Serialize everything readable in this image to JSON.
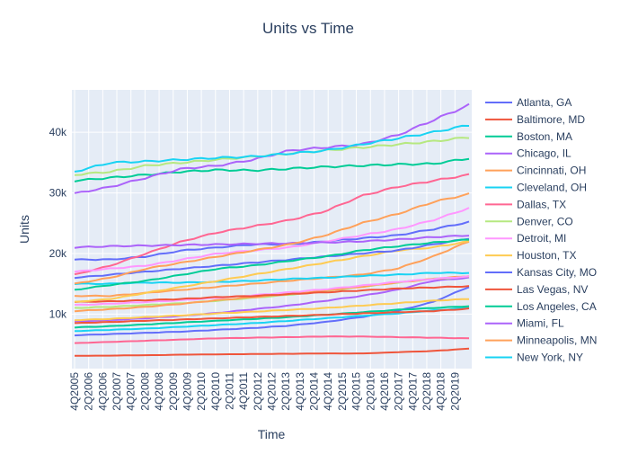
{
  "chart_data": {
    "type": "line",
    "title": "Units vs Time",
    "xlabel": "Time",
    "ylabel": "Units",
    "ylim": [
      1000,
      47000
    ],
    "y_ticks": [
      10000,
      20000,
      30000,
      40000
    ],
    "y_tick_labels": [
      "10k",
      "20k",
      "30k",
      "40k"
    ],
    "x_tick_labels": [
      "4Q2005",
      "2Q2006",
      "4Q2006",
      "2Q2007",
      "4Q2007",
      "2Q2008",
      "4Q2008",
      "2Q2009",
      "4Q2009",
      "2Q2010",
      "4Q2010",
      "2Q2011",
      "4Q2011",
      "2Q2012",
      "4Q2012",
      "2Q2013",
      "4Q2013",
      "2Q2014",
      "4Q2014",
      "2Q2015",
      "4Q2015",
      "2Q2016",
      "4Q2016",
      "2Q2017",
      "4Q2017",
      "2Q2018",
      "4Q2018",
      "2Q2019"
    ],
    "x_periods": 57,
    "background": "#e5ecf6",
    "legend_position": "right",
    "series": [
      {
        "name": "Atlanta, GA",
        "color": "#636efa",
        "values": [
          19000,
          19000,
          19500,
          20500,
          21000,
          21500,
          21500,
          22000,
          22500,
          23000,
          24000,
          25200
        ]
      },
      {
        "name": "Baltimore, MD",
        "color": "#ef553b",
        "values": [
          3100,
          3150,
          3200,
          3300,
          3350,
          3400,
          3450,
          3500,
          3500,
          3700,
          3900,
          4300
        ]
      },
      {
        "name": "Boston, MA",
        "color": "#00cc96",
        "values": [
          32000,
          32500,
          33000,
          33500,
          33800,
          33700,
          34000,
          34300,
          34500,
          34700,
          34800,
          35700
        ]
      },
      {
        "name": "Chicago, IL",
        "color": "#ab63fa",
        "values": [
          29900,
          31000,
          32500,
          34000,
          34500,
          35500,
          37000,
          37500,
          38000,
          39500,
          42000,
          44500
        ]
      },
      {
        "name": "Cincinnati, OH",
        "color": "#ffa15a",
        "values": [
          13000,
          13000,
          13500,
          14000,
          14500,
          15000,
          15500,
          16000,
          16500,
          17500,
          19500,
          22000
        ]
      },
      {
        "name": "Cleveland, OH",
        "color": "#19d3f3",
        "values": [
          15000,
          15000,
          15200,
          15200,
          15300,
          15500,
          15800,
          16000,
          16300,
          16500,
          16800,
          16800
        ]
      },
      {
        "name": "Dallas, TX",
        "color": "#ff6692",
        "values": [
          16500,
          18000,
          20000,
          22000,
          23500,
          24500,
          25500,
          27000,
          29500,
          31000,
          32000,
          33000
        ]
      },
      {
        "name": "Denver, CO",
        "color": "#b6e880",
        "values": [
          33000,
          33500,
          34500,
          35000,
          35500,
          36000,
          36500,
          37000,
          37500,
          38000,
          38500,
          39200
        ]
      },
      {
        "name": "Detroit, MI",
        "color": "#ff97ff",
        "values": [
          17000,
          17500,
          18000,
          19000,
          20000,
          20500,
          21000,
          22000,
          23000,
          24000,
          25500,
          27500
        ]
      },
      {
        "name": "Houston, TX",
        "color": "#fecb52",
        "values": [
          12000,
          12500,
          13500,
          14500,
          15500,
          16500,
          17500,
          18500,
          19500,
          20500,
          21000,
          22000
        ]
      },
      {
        "name": "Kansas City, MO",
        "color": "#636efa",
        "values": [
          16000,
          16500,
          17000,
          17500,
          18000,
          18500,
          19000,
          19500,
          20000,
          20500,
          21500,
          22500
        ]
      },
      {
        "name": "Las Vegas, NV",
        "color": "#ef553b",
        "values": [
          8500,
          8700,
          8900,
          9100,
          9300,
          9500,
          9700,
          9900,
          10100,
          10300,
          10500,
          10900
        ]
      },
      {
        "name": "Los Angeles, CA",
        "color": "#00cc96",
        "values": [
          14000,
          14800,
          15500,
          16500,
          17500,
          18000,
          18800,
          19500,
          20500,
          21200,
          21800,
          22300
        ]
      },
      {
        "name": "Miami, FL",
        "color": "#ab63fa",
        "values": [
          21000,
          21200,
          21300,
          21400,
          21500,
          21600,
          21700,
          21800,
          22000,
          22300,
          22700,
          23000
        ]
      },
      {
        "name": "Minneapolis, MN",
        "color": "#ffa15a",
        "values": [
          15000,
          16000,
          17500,
          18500,
          19500,
          20500,
          21500,
          23000,
          25000,
          26500,
          28500,
          29800
        ]
      },
      {
        "name": "New York, NY",
        "color": "#19d3f3",
        "values": [
          33500,
          35000,
          35200,
          35500,
          35800,
          36000,
          36500,
          37000,
          38000,
          39000,
          40000,
          41200
        ]
      }
    ],
    "extra_lines": [
      {
        "color": "#636efa",
        "values": [
          6500,
          6700,
          6900,
          7100,
          7400,
          7700,
          8100,
          8700,
          9500,
          10500,
          12000,
          14500
        ]
      },
      {
        "color": "#ab63fa",
        "values": [
          8800,
          9000,
          9300,
          9700,
          10200,
          10800,
          11400,
          12200,
          13000,
          14000,
          15500,
          16000
        ]
      },
      {
        "color": "#b6e880",
        "values": [
          11000,
          11200,
          11500,
          11800,
          12200,
          12700,
          13200,
          13800,
          14500,
          15200,
          15800,
          16200
        ]
      },
      {
        "color": "#ffa15a",
        "values": [
          10500,
          10800,
          11200,
          11700,
          12300,
          12800,
          13300,
          13900,
          14500,
          15200,
          15800,
          16300
        ]
      },
      {
        "color": "#ff97ff",
        "values": [
          11500,
          11700,
          12000,
          12300,
          12700,
          13100,
          13600,
          14100,
          14700,
          15300,
          15800,
          16200
        ]
      },
      {
        "color": "#19d3f3",
        "values": [
          7200,
          7400,
          7600,
          7900,
          8200,
          8500,
          8900,
          9300,
          9700,
          10100,
          10600,
          11000
        ]
      },
      {
        "color": "#00cc96",
        "values": [
          7800,
          8000,
          8300,
          8600,
          8900,
          9200,
          9500,
          9900,
          10300,
          10700,
          11000,
          11300
        ]
      },
      {
        "color": "#ff6692",
        "values": [
          5200,
          5400,
          5600,
          5800,
          6000,
          6100,
          6200,
          6300,
          6300,
          6200,
          6100,
          6000
        ]
      },
      {
        "color": "#fecb52",
        "values": [
          9000,
          9200,
          9500,
          9800,
          10100,
          10400,
          10700,
          11000,
          11400,
          11800,
          12200,
          12500
        ]
      },
      {
        "color": "#ef553b",
        "values": [
          12000,
          12100,
          12300,
          12500,
          12800,
          13000,
          13300,
          13600,
          13900,
          14200,
          14400,
          14600
        ]
      }
    ]
  }
}
